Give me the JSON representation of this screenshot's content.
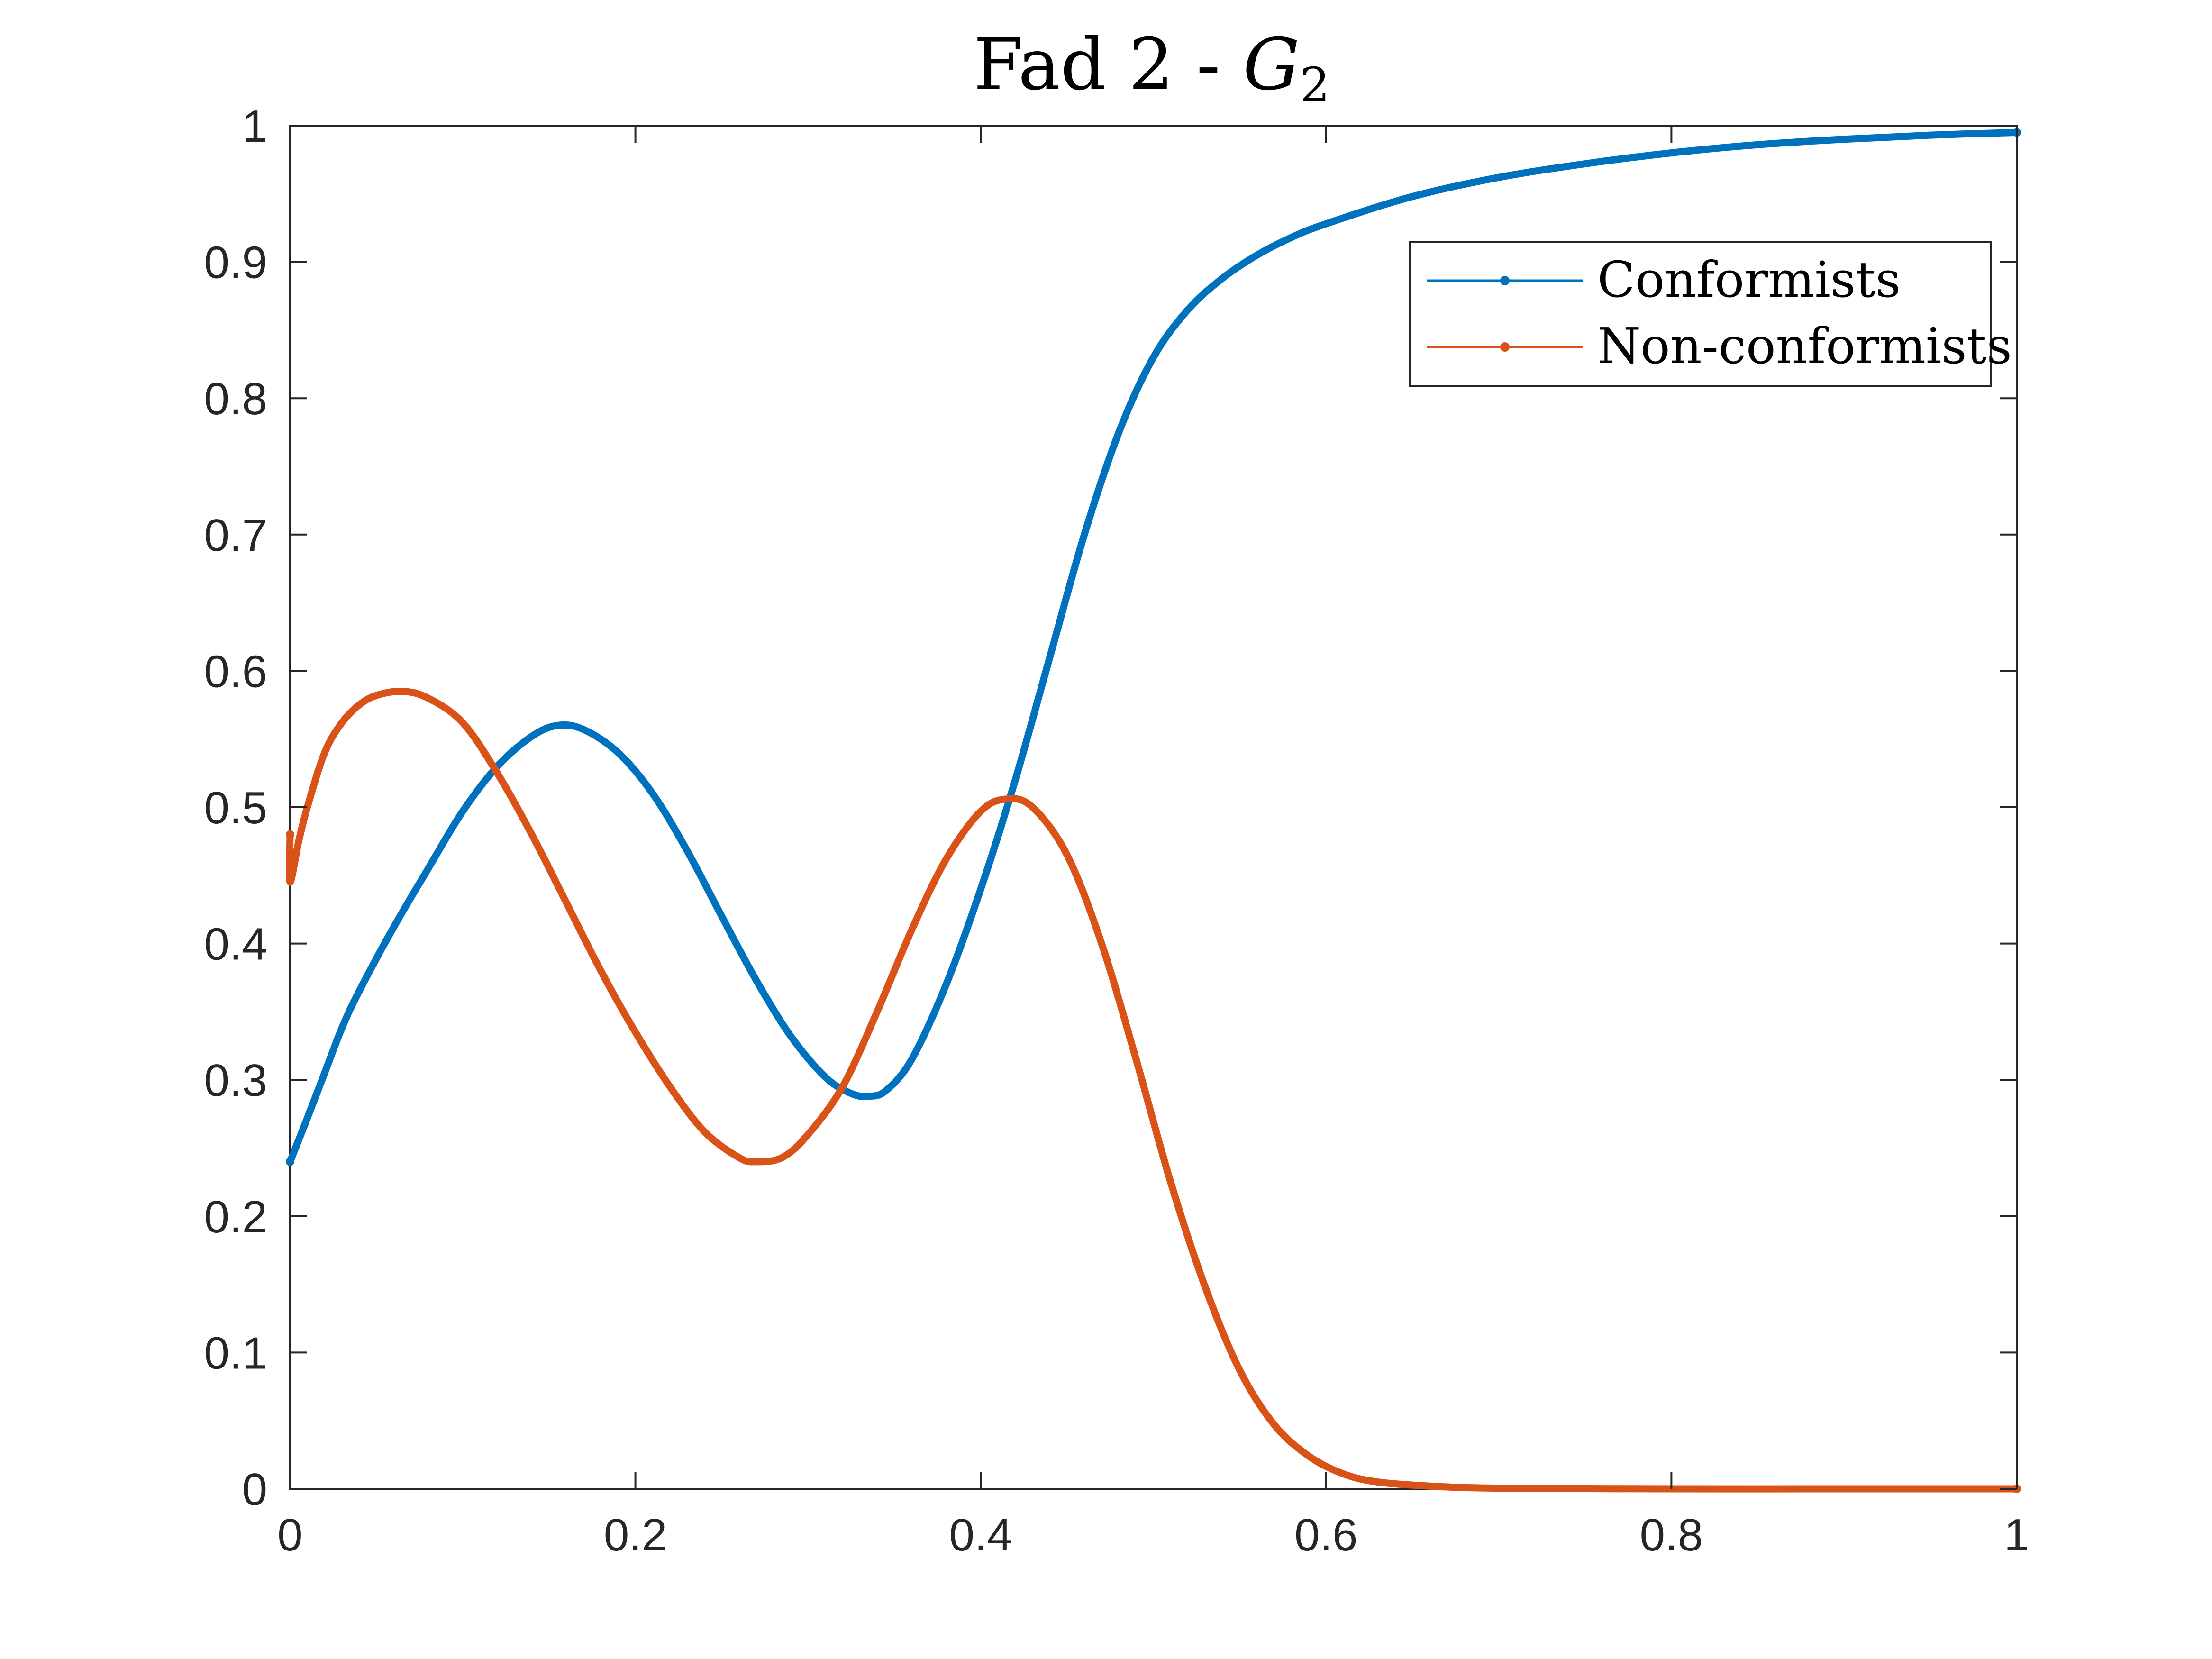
{
  "chart_data": {
    "type": "line",
    "title": "Fad 2 - ",
    "title_math": {
      "base": "G",
      "subscript": "2"
    },
    "xlabel": "",
    "ylabel": "",
    "xlim": [
      0,
      1
    ],
    "ylim": [
      0,
      1
    ],
    "xticks": [
      0,
      0.2,
      0.4,
      0.6,
      0.8,
      1
    ],
    "xtick_labels": [
      "0",
      "0.2",
      "0.4",
      "0.6",
      "0.8",
      "1"
    ],
    "yticks": [
      0,
      0.1,
      0.2,
      0.3,
      0.4,
      0.5,
      0.6,
      0.7,
      0.8,
      0.9,
      1
    ],
    "ytick_labels": [
      "0",
      "0.1",
      "0.2",
      "0.3",
      "0.4",
      "0.5",
      "0.6",
      "0.7",
      "0.8",
      "0.9",
      "1"
    ],
    "grid": false,
    "legend_position": "top-right",
    "series": [
      {
        "name": "Conformists",
        "color": "#0072BD",
        "points": [
          [
            0.0,
            0.24
          ],
          [
            0.01,
            0.272
          ],
          [
            0.02,
            0.305
          ],
          [
            0.03,
            0.338
          ],
          [
            0.04,
            0.365
          ],
          [
            0.06,
            0.412
          ],
          [
            0.08,
            0.455
          ],
          [
            0.1,
            0.497
          ],
          [
            0.12,
            0.53
          ],
          [
            0.14,
            0.552
          ],
          [
            0.155,
            0.56
          ],
          [
            0.17,
            0.557
          ],
          [
            0.19,
            0.54
          ],
          [
            0.21,
            0.51
          ],
          [
            0.23,
            0.468
          ],
          [
            0.25,
            0.42
          ],
          [
            0.27,
            0.373
          ],
          [
            0.29,
            0.332
          ],
          [
            0.31,
            0.302
          ],
          [
            0.325,
            0.29
          ],
          [
            0.335,
            0.288
          ],
          [
            0.345,
            0.292
          ],
          [
            0.36,
            0.315
          ],
          [
            0.38,
            0.37
          ],
          [
            0.4,
            0.44
          ],
          [
            0.42,
            0.52
          ],
          [
            0.44,
            0.61
          ],
          [
            0.46,
            0.7
          ],
          [
            0.48,
            0.775
          ],
          [
            0.5,
            0.83
          ],
          [
            0.52,
            0.865
          ],
          [
            0.54,
            0.888
          ],
          [
            0.56,
            0.905
          ],
          [
            0.58,
            0.918
          ],
          [
            0.6,
            0.928
          ],
          [
            0.65,
            0.948
          ],
          [
            0.7,
            0.962
          ],
          [
            0.75,
            0.972
          ],
          [
            0.8,
            0.98
          ],
          [
            0.85,
            0.986
          ],
          [
            0.9,
            0.99
          ],
          [
            0.95,
            0.993
          ],
          [
            1.0,
            0.995
          ]
        ]
      },
      {
        "name": "Non-conformists",
        "color": "#D95319",
        "points": [
          [
            0.0,
            0.48
          ],
          [
            0.0,
            0.445
          ],
          [
            0.005,
            0.475
          ],
          [
            0.01,
            0.5
          ],
          [
            0.02,
            0.54
          ],
          [
            0.03,
            0.562
          ],
          [
            0.04,
            0.575
          ],
          [
            0.05,
            0.582
          ],
          [
            0.065,
            0.585
          ],
          [
            0.08,
            0.58
          ],
          [
            0.1,
            0.562
          ],
          [
            0.12,
            0.525
          ],
          [
            0.14,
            0.48
          ],
          [
            0.16,
            0.43
          ],
          [
            0.18,
            0.38
          ],
          [
            0.2,
            0.335
          ],
          [
            0.22,
            0.295
          ],
          [
            0.24,
            0.262
          ],
          [
            0.26,
            0.243
          ],
          [
            0.27,
            0.24
          ],
          [
            0.285,
            0.243
          ],
          [
            0.3,
            0.26
          ],
          [
            0.32,
            0.295
          ],
          [
            0.34,
            0.35
          ],
          [
            0.36,
            0.41
          ],
          [
            0.38,
            0.462
          ],
          [
            0.4,
            0.497
          ],
          [
            0.415,
            0.506
          ],
          [
            0.43,
            0.5
          ],
          [
            0.45,
            0.465
          ],
          [
            0.47,
            0.4
          ],
          [
            0.49,
            0.315
          ],
          [
            0.51,
            0.225
          ],
          [
            0.53,
            0.148
          ],
          [
            0.55,
            0.087
          ],
          [
            0.57,
            0.047
          ],
          [
            0.59,
            0.024
          ],
          [
            0.61,
            0.011
          ],
          [
            0.63,
            0.005
          ],
          [
            0.66,
            0.002
          ],
          [
            0.7,
            0.0005
          ],
          [
            0.8,
            0.0
          ],
          [
            0.9,
            0.0
          ],
          [
            1.0,
            0.0
          ]
        ]
      }
    ]
  }
}
